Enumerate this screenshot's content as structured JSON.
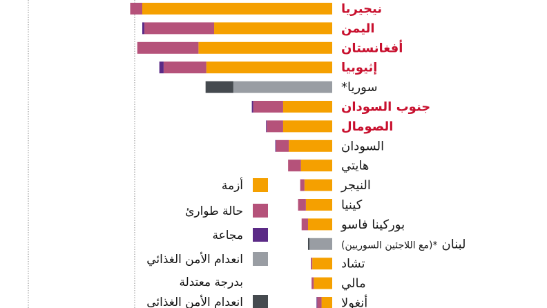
{
  "chart_data": {
    "type": "bar",
    "orientation": "horizontal",
    "stacked": true,
    "categories": [
      {
        "label": "نيجيريا",
        "highlight": true
      },
      {
        "label": "اليمن",
        "highlight": true
      },
      {
        "label": "أفغانستان",
        "highlight": true
      },
      {
        "label": "إثيوبيا",
        "highlight": true
      },
      {
        "label": "سوريا*",
        "highlight": false
      },
      {
        "label": "جنوب السودان",
        "highlight": true
      },
      {
        "label": "الصومال",
        "highlight": true
      },
      {
        "label": "السودان",
        "highlight": false
      },
      {
        "label": "هايتي",
        "highlight": false
      },
      {
        "label": "النيجر",
        "highlight": false
      },
      {
        "label": "كينيا",
        "highlight": false
      },
      {
        "label": "بوركينا فاسو",
        "highlight": false
      },
      {
        "label": "لبنان (مع اللاجئين السوريين)*",
        "main": "لبنان",
        "note": "(مع اللاجئين السوريين)*",
        "highlight": false
      },
      {
        "label": "تشاد",
        "highlight": false
      },
      {
        "label": "مالي",
        "highlight": false
      },
      {
        "label": "أنغولا",
        "highlight": false
      }
    ],
    "series": [
      {
        "name": "أزمة",
        "color": "#f5a000",
        "values": [
          26.7,
          16.6,
          18.8,
          17.7,
          0,
          6.9,
          6.9,
          6.1,
          4.4,
          3.9,
          3.7,
          3.4,
          0,
          2.8,
          2.6,
          1.5
        ]
      },
      {
        "name": "حالة طوارئ",
        "color": "#b5527a",
        "values": [
          1.7,
          9.8,
          8.6,
          6.0,
          0,
          4.2,
          2.3,
          1.8,
          1.8,
          0.6,
          1.1,
          0.9,
          0,
          0.2,
          0.3,
          0.6
        ]
      },
      {
        "name": "مجاعة",
        "color": "#5b2a86",
        "values": [
          0,
          0.3,
          0,
          0.6,
          0,
          0.2,
          0.1,
          0.1,
          0,
          0,
          0,
          0,
          0,
          0,
          0,
          0.1
        ]
      },
      {
        "name": "انعدام الأمن الغذائي بدرجة معتدلة",
        "name_lines": [
          "انعدام الأمن الغذائي",
          "بدرجة معتدلة"
        ],
        "color": "#999da3",
        "values": [
          0,
          0,
          0,
          0,
          13.9,
          0,
          0,
          0,
          0,
          0,
          0,
          0,
          3.2,
          0,
          0,
          0
        ]
      },
      {
        "name": "انعدام الأمن الغذائي",
        "color": "#454a4f",
        "values": [
          0,
          0,
          0,
          0,
          3.9,
          0,
          0,
          0,
          0,
          0,
          0,
          0,
          0.2,
          0,
          0,
          0
        ]
      }
    ],
    "colors": {
      "highlight_label": "#c8102e",
      "normal_label": "#1a1a1a"
    },
    "grid": true
  }
}
